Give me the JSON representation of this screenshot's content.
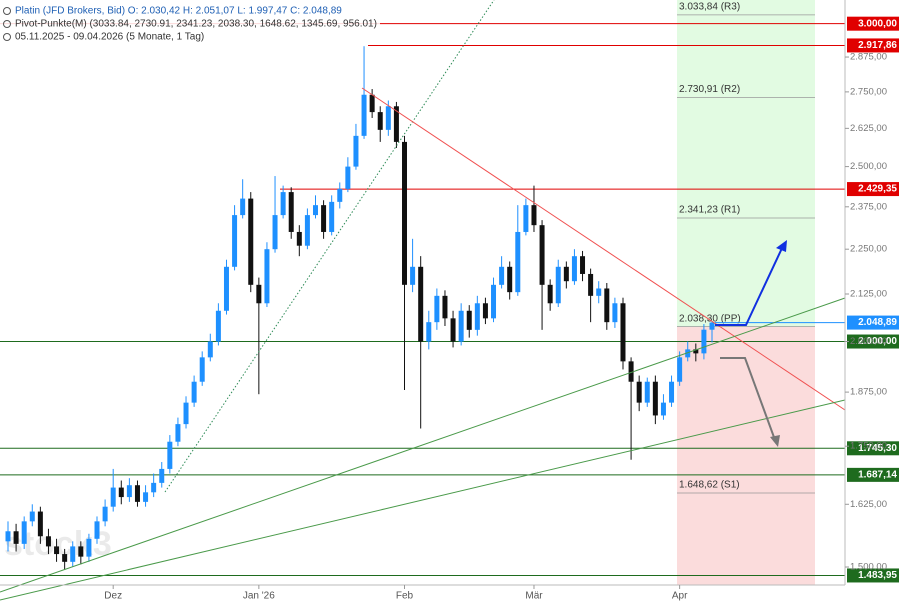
{
  "chart_data": {
    "type": "candlestick",
    "legend": [
      "Platin (JFD Brokers, Bid)  O: 2.030,42  H: 2.051,07  L: 1.997,47  C: 2.048,89",
      "Pivot-Punkte(M)  (3033.84,  2730.91,  2341.23,  2038.30,  1648.62,  1345.69,  956.01)",
      "05.11.2025 - 09.04.2026   (5 Monate, 1 Tag)"
    ],
    "watermark": "stock3",
    "log_scale": true,
    "up_color": "#1e90ff",
    "down_color": "#111111",
    "categories": [
      null,
      null,
      null,
      null,
      null,
      null,
      null,
      null,
      null,
      null,
      null,
      null,
      null,
      "Dez",
      null,
      null,
      null,
      null,
      null,
      null,
      null,
      null,
      null,
      null,
      null,
      null,
      null,
      null,
      null,
      null,
      null,
      "Jan '26",
      null,
      null,
      null,
      null,
      null,
      null,
      null,
      null,
      null,
      null,
      null,
      null,
      null,
      null,
      null,
      null,
      null,
      "Feb",
      null,
      null,
      null,
      null,
      null,
      null,
      null,
      null,
      null,
      null,
      null,
      null,
      null,
      null,
      null,
      "Mär",
      null,
      null,
      null,
      null,
      null,
      null,
      null,
      null,
      null,
      null,
      null,
      null,
      null,
      null,
      null,
      null,
      null,
      "Apr",
      null,
      null,
      null,
      null
    ],
    "open": [
      1550,
      1570,
      1545,
      1590,
      1610,
      1560,
      1540,
      1525,
      1510,
      1540,
      1520,
      1555,
      1590,
      1620,
      1660,
      1640,
      1665,
      1630,
      1650,
      1670,
      1700,
      1760,
      1800,
      1850,
      1900,
      1960,
      2000,
      2080,
      2200,
      2350,
      2400,
      2150,
      2100,
      2250,
      2350,
      2420,
      2300,
      2260,
      2350,
      2380,
      2300,
      2390,
      2430,
      2500,
      2600,
      2740,
      2680,
      2620,
      2700,
      2580,
      2150,
      2200,
      2000,
      2050,
      2120,
      2060,
      2000,
      2080,
      2030,
      2100,
      2060,
      2150,
      2200,
      2130,
      2300,
      2380,
      2320,
      2150,
      2100,
      2200,
      2160,
      2230,
      2180,
      2120,
      2140,
      2050,
      2100,
      1950,
      1900,
      1850,
      1900,
      1820,
      1850,
      1900,
      1960,
      1980,
      1970,
      2030.42
    ],
    "high": [
      1590,
      1585,
      1600,
      1625,
      1620,
      1575,
      1555,
      1535,
      1550,
      1550,
      1565,
      1600,
      1635,
      1700,
      1675,
      1680,
      1675,
      1665,
      1690,
      1715,
      1775,
      1815,
      1865,
      1915,
      1975,
      2020,
      2100,
      2220,
      2380,
      2460,
      2420,
      2170,
      2270,
      2470,
      2440,
      2435,
      2320,
      2370,
      2410,
      2395,
      2410,
      2450,
      2530,
      2640,
      2915,
      2760,
      2700,
      2720,
      2715,
      2600,
      2280,
      2230,
      2080,
      2140,
      2135,
      2080,
      2100,
      2095,
      2120,
      2115,
      2170,
      2230,
      2215,
      2380,
      2400,
      2440,
      2335,
      2165,
      2220,
      2215,
      2250,
      2245,
      2195,
      2160,
      2155,
      2115,
      2115,
      1960,
      1915,
      1910,
      1915,
      1870,
      1915,
      1975,
      2000,
      1995,
      2045,
      2051.07
    ],
    "low": [
      1530,
      1530,
      1535,
      1580,
      1545,
      1525,
      1510,
      1495,
      1500,
      1505,
      1510,
      1545,
      1580,
      1610,
      1625,
      1630,
      1620,
      1620,
      1640,
      1660,
      1690,
      1750,
      1790,
      1840,
      1890,
      1950,
      1990,
      2070,
      2190,
      2340,
      2130,
      1870,
      2090,
      2240,
      2340,
      2280,
      2230,
      2250,
      2340,
      2280,
      2290,
      2370,
      2420,
      2490,
      2590,
      2660,
      2580,
      2600,
      2560,
      1880,
      2130,
      1790,
      1980,
      2030,
      2040,
      1985,
      1990,
      2010,
      2015,
      2045,
      2050,
      2140,
      2110,
      2120,
      2290,
      2300,
      2030,
      2080,
      2090,
      2140,
      2150,
      2160,
      2050,
      2100,
      2030,
      2035,
      1930,
      1720,
      1830,
      1840,
      1800,
      1810,
      1840,
      1890,
      1950,
      1950,
      1955,
      1997.47
    ],
    "close": [
      1570,
      1545,
      1590,
      1610,
      1560,
      1540,
      1525,
      1510,
      1540,
      1520,
      1555,
      1590,
      1620,
      1660,
      1640,
      1665,
      1630,
      1650,
      1670,
      1700,
      1760,
      1800,
      1850,
      1900,
      1960,
      2000,
      2080,
      2200,
      2350,
      2400,
      2150,
      2100,
      2250,
      2350,
      2420,
      2300,
      2260,
      2350,
      2380,
      2300,
      2390,
      2430,
      2500,
      2600,
      2740,
      2680,
      2620,
      2700,
      2580,
      2150,
      2200,
      2000,
      2050,
      2120,
      2060,
      2000,
      2080,
      2030,
      2100,
      2060,
      2150,
      2200,
      2130,
      2300,
      2380,
      2320,
      2150,
      2100,
      2200,
      2160,
      2230,
      2180,
      2120,
      2140,
      2050,
      2100,
      1950,
      1900,
      1850,
      1900,
      1820,
      1850,
      1900,
      1960,
      1980,
      1970,
      2030.42,
      2048.89
    ],
    "ylim": [
      1466,
      3092
    ],
    "yticks": [
      {
        "value": 1500,
        "label": "1.500,00"
      },
      {
        "value": 1625,
        "label": "1.625,00"
      },
      {
        "value": 1750,
        "label": "1.750,00"
      },
      {
        "value": 1875,
        "label": "1.875,00"
      },
      {
        "value": 2000,
        "label": "2.000,00"
      },
      {
        "value": 2125,
        "label": "2.125,00"
      },
      {
        "value": 2250,
        "label": "2.250,00"
      },
      {
        "value": 2375,
        "label": "2.375,00"
      },
      {
        "value": 2500,
        "label": "2.500,00"
      },
      {
        "value": 2625,
        "label": "2.625,00"
      },
      {
        "value": 2750,
        "label": "2.750,00"
      },
      {
        "value": 2875,
        "label": "2.875,00"
      }
    ],
    "levels": [
      {
        "value": 3000,
        "label": "3.000,00",
        "color": "#e00000"
      },
      {
        "value": 2917.86,
        "label": "2.917,86",
        "color": "#e00000"
      },
      {
        "value": 2429.35,
        "label": "2.429,35",
        "color": "#e00000"
      },
      {
        "value": 2048.89,
        "label": "2.048,89",
        "color": "#1e90ff"
      },
      {
        "value": 2000,
        "label": "2.000,00",
        "color": "#1e6b1e"
      },
      {
        "value": 1745.3,
        "label": "1.745,30",
        "color": "#1e6b1e"
      },
      {
        "value": 1687.14,
        "label": "1.687,14",
        "color": "#1e6b1e"
      },
      {
        "value": 1483.95,
        "label": "1.483,95",
        "color": "#1e6b1e"
      }
    ],
    "pivots": [
      {
        "value": 3033.84,
        "label": "3.033,84 (R3)"
      },
      {
        "value": 2730.91,
        "label": "2.730,91 (R2)"
      },
      {
        "value": 2341.23,
        "label": "2.341,23 (R1)"
      },
      {
        "value": 2038.3,
        "label": "2.038,30 (PP)"
      },
      {
        "value": 1648.62,
        "label": "1.648,62 (S1)"
      }
    ]
  }
}
